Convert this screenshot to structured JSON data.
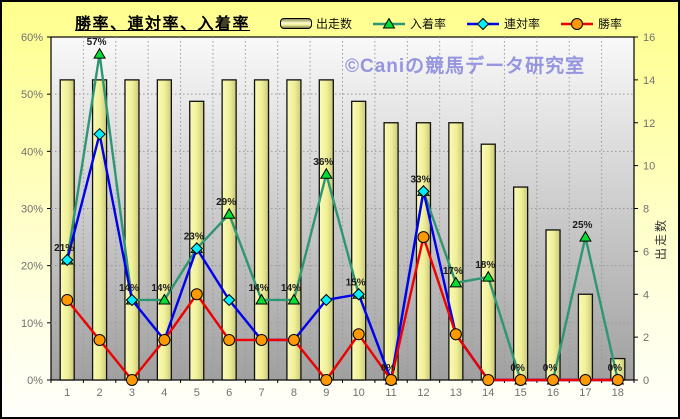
{
  "title": "勝率、連対率、入着率",
  "watermark": {
    "text": "©Caniの競馬データ研究室",
    "color": "#9595e0"
  },
  "legend": {
    "items": [
      {
        "label": "出走数",
        "swatch": "bar"
      },
      {
        "label": "入着率",
        "swatch": "line-triangle"
      },
      {
        "label": "連対率",
        "swatch": "line-diamond"
      },
      {
        "label": "勝率",
        "swatch": "line-circle"
      }
    ]
  },
  "chart_data": {
    "type": "composite bar+line",
    "categories": [
      "1",
      "2",
      "3",
      "4",
      "5",
      "6",
      "7",
      "8",
      "9",
      "10",
      "11",
      "12",
      "13",
      "14",
      "15",
      "16",
      "17",
      "18"
    ],
    "bar_series": {
      "name": "出走数",
      "key": "starts",
      "axis": "right",
      "values": [
        14,
        14,
        14,
        14,
        13,
        14,
        14,
        14,
        14,
        13,
        12,
        12,
        12,
        11,
        9,
        7,
        4,
        1
      ],
      "fill_light": "#fbfbb6",
      "fill_mid": "#efef98",
      "fill_dark": "#c8c87b",
      "outline": "#111111"
    },
    "line_series": [
      {
        "name": "入着率",
        "key": "placing-rate",
        "axis": "left",
        "marker": "triangle",
        "line_color": "#2f9673",
        "marker_fill": "#00dd33",
        "values": [
          21,
          57,
          14,
          14,
          23,
          29,
          14,
          14,
          36,
          15,
          0,
          33,
          17,
          18,
          0,
          0,
          25,
          0
        ],
        "point_labels": [
          "21%",
          "57%",
          "14%",
          "14%",
          "23%",
          "29%",
          "14%",
          "14%",
          "36%",
          "15%",
          "0%",
          "33%",
          "17%",
          "18%",
          "0%",
          "0%",
          "25%",
          "0%"
        ]
      },
      {
        "name": "連対率",
        "key": "quinella-rate",
        "axis": "left",
        "marker": "diamond",
        "line_color": "#0000ee",
        "marker_fill": "#00eeff",
        "values": [
          21,
          43,
          14,
          7,
          23,
          14,
          7,
          7,
          14,
          15,
          0,
          33,
          8,
          0,
          0,
          0,
          0,
          0
        ]
      },
      {
        "name": "勝率",
        "key": "win-rate",
        "axis": "left",
        "marker": "circle",
        "line_color": "#ee0000",
        "marker_fill": "#ff9900",
        "values": [
          14,
          7,
          0,
          7,
          15,
          7,
          7,
          7,
          0,
          8,
          0,
          25,
          8,
          0,
          0,
          0,
          0,
          0
        ]
      }
    ],
    "left_axis": {
      "min": 0,
      "max": 60,
      "step": 10,
      "format": "percent",
      "ticks": [
        "0%",
        "10%",
        "20%",
        "30%",
        "40%",
        "50%",
        "60%"
      ]
    },
    "right_axis": {
      "min": 0,
      "max": 16,
      "step": 2,
      "title": "出走数",
      "ticks": [
        "0",
        "2",
        "4",
        "6",
        "8",
        "10",
        "12",
        "14",
        "16"
      ]
    },
    "grid": {
      "horizontal": "dotted every 10%",
      "vertical": "dotted every category",
      "color": "#999999"
    },
    "plot_bg": {
      "top": "#f9f9f9",
      "bottom": "#a0a0a0"
    },
    "axis_text_color": "#717171",
    "label_text_color": "#1b1b1b"
  }
}
